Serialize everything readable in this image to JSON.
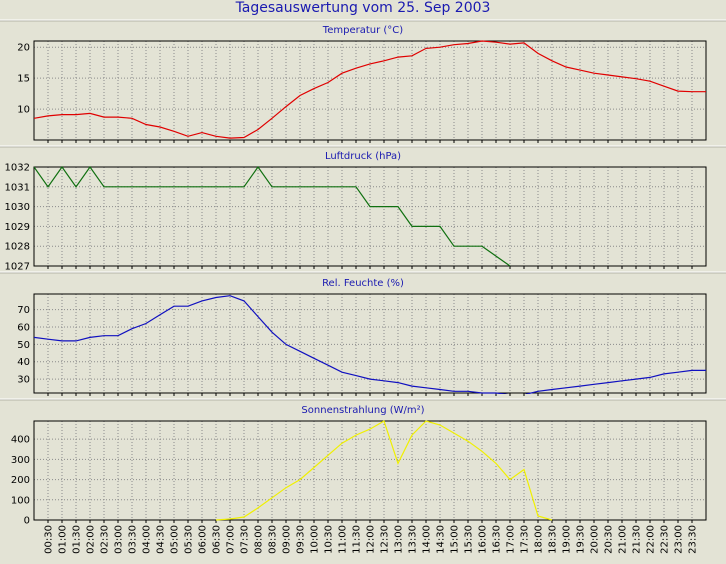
{
  "window": {
    "title": "Tagesauswertung vom 25. Sep 2003"
  },
  "colors": {
    "background": "#e3e3d5",
    "title_text": "#1a1ab0",
    "grid": "#8a8a8a"
  },
  "x_axis": {
    "tick_labels": [
      "00:30",
      "01:00",
      "01:30",
      "02:00",
      "02:30",
      "03:00",
      "03:30",
      "04:00",
      "04:30",
      "05:00",
      "05:30",
      "06:00",
      "06:30",
      "07:00",
      "07:30",
      "08:00",
      "08:30",
      "09:00",
      "09:30",
      "10:00",
      "10:30",
      "11:00",
      "11:30",
      "12:00",
      "12:30",
      "13:00",
      "13:30",
      "14:00",
      "14:30",
      "15:00",
      "15:30",
      "16:00",
      "16:30",
      "17:00",
      "17:30",
      "18:00",
      "18:30",
      "19:00",
      "19:30",
      "20:00",
      "20:30",
      "21:00",
      "21:30",
      "22:00",
      "22:30",
      "23:00",
      "23:30"
    ]
  },
  "chart_data": [
    {
      "type": "line",
      "title": "Temperatur (°C)",
      "color": "#e00000",
      "ylim": [
        5,
        21
      ],
      "yticks": [
        10,
        15,
        20
      ],
      "grid": true,
      "x": [
        "00:00",
        "00:30",
        "01:00",
        "01:30",
        "02:00",
        "02:30",
        "03:00",
        "03:30",
        "04:00",
        "04:30",
        "05:00",
        "05:30",
        "06:00",
        "06:30",
        "07:00",
        "07:30",
        "08:00",
        "08:30",
        "09:00",
        "09:30",
        "10:00",
        "10:30",
        "11:00",
        "11:30",
        "12:00",
        "12:30",
        "13:00",
        "13:30",
        "14:00",
        "14:30",
        "15:00",
        "15:30",
        "16:00",
        "16:30",
        "17:00",
        "17:30",
        "18:00",
        "18:30",
        "19:00",
        "19:30",
        "20:00",
        "20:30",
        "21:00",
        "21:30",
        "22:00",
        "22:30",
        "23:00",
        "23:30",
        "24:00"
      ],
      "values": [
        8.5,
        8.9,
        9.1,
        9.1,
        9.3,
        8.7,
        8.7,
        8.5,
        7.5,
        7.1,
        6.4,
        5.6,
        6.2,
        5.6,
        5.3,
        5.4,
        6.7,
        8.5,
        10.4,
        12.2,
        13.3,
        14.3,
        15.8,
        16.6,
        17.3,
        17.8,
        18.4,
        18.6,
        19.8,
        20.0,
        20.4,
        20.6,
        21.0,
        20.8,
        20.5,
        20.7,
        19.0,
        17.8,
        16.8,
        16.3,
        15.8,
        15.5,
        15.2,
        14.9,
        14.5,
        13.7,
        12.9,
        12.8,
        12.8
      ]
    },
    {
      "type": "line",
      "title": "Luftdruck (hPa)",
      "color": "#107010",
      "ylim": [
        1027,
        1032
      ],
      "yticks": [
        1027,
        1028,
        1029,
        1030,
        1031,
        1032
      ],
      "grid": true,
      "x": [
        "00:00",
        "00:30",
        "01:00",
        "01:30",
        "02:00",
        "02:30",
        "03:00",
        "07:00",
        "07:30",
        "08:00",
        "08:30",
        "09:00",
        "11:00",
        "11:30",
        "12:00",
        "13:00",
        "13:30",
        "14:30",
        "15:00",
        "16:00",
        "16:30",
        "17:00"
      ],
      "values": [
        1032,
        1031,
        1032,
        1031,
        1032,
        1031,
        1031,
        1031,
        1031,
        1032,
        1031,
        1031,
        1031,
        1031,
        1030,
        1030,
        1029,
        1029,
        1028,
        1028,
        1027.5,
        1027
      ]
    },
    {
      "type": "line",
      "title": "Rel. Feuchte (%)",
      "color": "#1010c0",
      "ylim": [
        22,
        79
      ],
      "yticks": [
        30,
        40,
        50,
        60,
        70
      ],
      "grid": true,
      "x": [
        "00:00",
        "00:30",
        "01:00",
        "01:30",
        "02:00",
        "02:30",
        "03:00",
        "03:30",
        "04:00",
        "04:30",
        "05:00",
        "05:30",
        "06:00",
        "06:30",
        "07:00",
        "07:30",
        "08:00",
        "08:30",
        "09:00",
        "09:30",
        "10:00",
        "10:30",
        "11:00",
        "11:30",
        "12:00",
        "12:30",
        "13:00",
        "13:30",
        "14:00",
        "14:30",
        "15:00",
        "15:30",
        "16:00",
        "16:30",
        "17:00",
        "17:30",
        "18:00",
        "18:30",
        "19:00",
        "19:30",
        "20:00",
        "20:30",
        "21:00",
        "21:30",
        "22:00",
        "22:30",
        "23:00",
        "23:30",
        "24:00"
      ],
      "values": [
        54,
        53,
        52,
        52,
        54,
        55,
        55,
        59,
        62,
        67,
        72,
        72,
        75,
        77,
        78,
        75,
        66,
        57,
        50,
        46,
        42,
        38,
        34,
        32,
        30,
        29,
        28,
        26,
        25,
        24,
        23,
        23,
        22,
        22,
        21,
        21,
        23,
        24,
        25,
        26,
        27,
        28,
        29,
        30,
        31,
        33,
        34,
        35,
        35
      ]
    },
    {
      "type": "line",
      "title": "Sonnenstrahlung (W/m²)",
      "color": "#f0f000",
      "ylim": [
        0,
        490
      ],
      "yticks": [
        0,
        100,
        200,
        300,
        400
      ],
      "grid": true,
      "x": [
        "06:30",
        "07:00",
        "07:30",
        "08:00",
        "08:30",
        "09:00",
        "09:30",
        "10:00",
        "10:30",
        "11:00",
        "11:30",
        "12:00",
        "12:30",
        "13:00",
        "13:30",
        "14:00",
        "14:30",
        "15:00",
        "15:30",
        "16:00",
        "16:30",
        "17:00",
        "17:30",
        "18:00",
        "18:30"
      ],
      "values": [
        0,
        5,
        15,
        60,
        110,
        160,
        200,
        260,
        320,
        380,
        420,
        450,
        490,
        280,
        420,
        490,
        470,
        430,
        390,
        340,
        280,
        200,
        250,
        20,
        0
      ]
    }
  ]
}
